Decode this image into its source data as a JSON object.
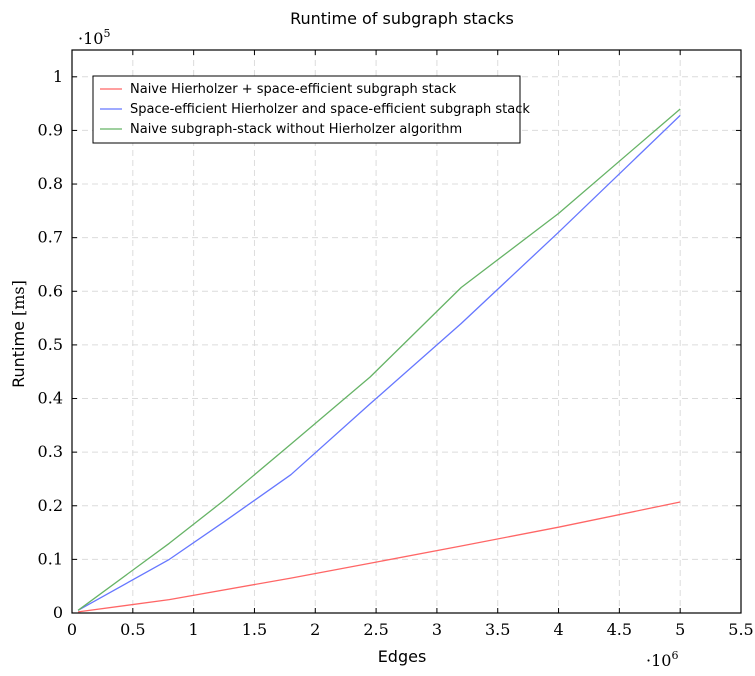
{
  "chart_data": {
    "type": "line",
    "title": "Runtime of subgraph stacks",
    "xlabel": "Edges",
    "ylabel_text": "Runtime",
    "ylabel_unit": "[ms]",
    "x_multiplier_base": "·10",
    "x_multiplier_exp": "6",
    "y_multiplier_base": "·10",
    "y_multiplier_exp": "5",
    "xlim": [
      0,
      5.5
    ],
    "ylim": [
      0,
      1.05
    ],
    "x_ticks": [
      0,
      0.5,
      1,
      1.5,
      2,
      2.5,
      3,
      3.5,
      4,
      4.5,
      5,
      5.5
    ],
    "x_tick_labels": [
      "0",
      "0.5",
      "1",
      "1.5",
      "2",
      "2.5",
      "3",
      "3.5",
      "4",
      "4.5",
      "5",
      "5.5"
    ],
    "y_ticks": [
      0,
      0.1,
      0.2,
      0.3,
      0.4,
      0.5,
      0.6,
      0.7,
      0.8,
      0.9,
      1
    ],
    "y_tick_labels": [
      "0",
      "0.1",
      "0.2",
      "0.3",
      "0.4",
      "0.5",
      "0.6",
      "0.7",
      "0.8",
      "0.9",
      "1"
    ],
    "grid": true,
    "legend_position": "top-left",
    "series": [
      {
        "name": "Naive Hierholzer + space-efficient subgraph stack",
        "color": "#ff6666",
        "x": [
          0.05,
          0.8,
          1.8,
          2.5,
          3.2,
          4.0,
          5.0
        ],
        "y": [
          0.002,
          0.025,
          0.065,
          0.095,
          0.125,
          0.16,
          0.207
        ]
      },
      {
        "name": "Space-efficient Hierholzer and space-efficient subgraph stack",
        "color": "#6677ff",
        "x": [
          0.05,
          0.8,
          1.25,
          1.8,
          2.45,
          3.2,
          4.0,
          5.0
        ],
        "y": [
          0.005,
          0.1,
          0.17,
          0.258,
          0.39,
          0.54,
          0.71,
          0.928
        ]
      },
      {
        "name": "Naive subgraph-stack without Hierholzer algorithm",
        "color": "#66b366",
        "x": [
          0.05,
          0.8,
          1.25,
          1.8,
          2.45,
          3.2,
          4.0,
          5.0
        ],
        "y": [
          0.005,
          0.13,
          0.21,
          0.315,
          0.44,
          0.607,
          0.745,
          0.94
        ]
      }
    ]
  }
}
